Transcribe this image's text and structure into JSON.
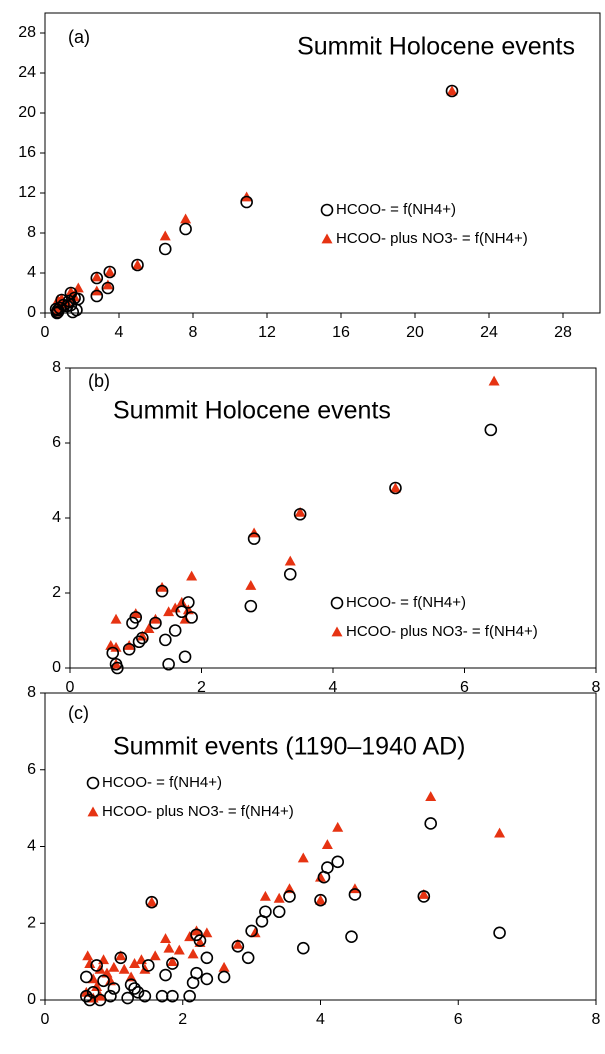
{
  "chart_data": [
    {
      "type": "scatter",
      "label": "(a)",
      "title": "Summit Holocene events",
      "legend": "right",
      "xlim": [
        0,
        30
      ],
      "xticks": [
        0,
        4,
        8,
        12,
        16,
        20,
        24,
        28
      ],
      "ylim": [
        0,
        30
      ],
      "yticks": [
        0,
        4,
        8,
        12,
        16,
        20,
        24,
        28
      ],
      "series": [
        {
          "name": "HCOO- = f(NH4+)",
          "color": "#000000",
          "marker": "circle",
          "x": [
            22,
            10.9,
            7.6,
            6.5,
            5,
            3.5,
            3.4,
            2.8,
            2.8,
            1.8,
            1.6,
            1.4,
            1.4,
            1.2,
            1,
            0.9,
            0.8,
            0.7,
            0.65,
            1.5,
            1.7,
            1.3,
            0.6,
            0.7
          ],
          "values": [
            22.2,
            11.1,
            8.4,
            6.4,
            4.8,
            4.1,
            2.5,
            3.5,
            1.7,
            1.4,
            1.5,
            2.0,
            0.8,
            0.7,
            0.8,
            1.3,
            0.5,
            0.3,
            0.0,
            0.1,
            0.3,
            1.2,
            0.4,
            0.1
          ]
        },
        {
          "name": "HCOO- plus NO3- = f(NH4+)",
          "color": "#e63312",
          "marker": "triangle",
          "x": [
            22,
            10.9,
            7.6,
            6.5,
            5,
            3.5,
            3.4,
            2.8,
            2.8,
            1.8,
            1.6,
            1.4,
            1.4,
            1.2,
            1,
            0.9,
            0.8,
            0.7,
            0.6,
            0.65
          ],
          "values": [
            22.2,
            11.6,
            9.4,
            7.7,
            4.8,
            4.1,
            2.8,
            3.6,
            2.2,
            2.5,
            1.6,
            2.1,
            1.5,
            1.0,
            0.9,
            1.4,
            0.6,
            1.3,
            0.6,
            0.1
          ]
        }
      ]
    },
    {
      "type": "scatter",
      "label": "(b)",
      "title": "Summit Holocene events",
      "legend": "lower-right",
      "xlim": [
        0,
        8
      ],
      "xticks": [
        0,
        2,
        4,
        6,
        8
      ],
      "ylim": [
        0,
        8
      ],
      "yticks": [
        0,
        2,
        4,
        6,
        8
      ],
      "series": [
        {
          "name": "HCOO- = f(NH4+)",
          "color": "#000000",
          "marker": "circle",
          "x": [
            6.4,
            4.95,
            3.5,
            3.35,
            2.8,
            2.75,
            1.85,
            1.8,
            1.7,
            1.75,
            1.6,
            1.5,
            1.45,
            1.4,
            1.3,
            1.1,
            1.05,
            1.0,
            0.95,
            0.9,
            0.65,
            0.7,
            0.72
          ],
          "values": [
            6.35,
            4.8,
            4.1,
            2.5,
            3.45,
            1.65,
            1.35,
            1.75,
            1.5,
            0.3,
            1.0,
            0.1,
            0.75,
            2.05,
            1.2,
            0.8,
            0.7,
            1.35,
            1.2,
            0.5,
            0.4,
            0.1,
            0.0
          ]
        },
        {
          "name": "HCOO- plus NO3- = f(NH4+)",
          "color": "#e63312",
          "marker": "triangle",
          "x": [
            6.45,
            4.95,
            3.5,
            3.35,
            2.8,
            2.75,
            1.85,
            1.8,
            1.7,
            1.75,
            1.6,
            1.5,
            1.4,
            1.3,
            1.2,
            1.1,
            1.0,
            0.9,
            0.7,
            0.7,
            0.62,
            0.7
          ],
          "values": [
            7.65,
            4.8,
            4.15,
            2.85,
            3.6,
            2.2,
            2.45,
            1.55,
            1.75,
            1.3,
            1.6,
            1.5,
            2.15,
            1.3,
            1.05,
            0.85,
            1.45,
            0.6,
            1.3,
            0.55,
            0.6,
            0.1
          ]
        }
      ]
    },
    {
      "type": "scatter",
      "label": "(c)",
      "title": "Summit events (1190–1940 AD)",
      "legend": "upper-left",
      "xlim": [
        0,
        8
      ],
      "xticks": [
        0,
        2,
        4,
        6,
        8
      ],
      "ylim": [
        0,
        8
      ],
      "yticks": [
        0,
        2,
        4,
        6,
        8
      ],
      "series": [
        {
          "name": "HCOO- = f(NH4+)",
          "color": "#000000",
          "marker": "circle",
          "x": [
            6.6,
            5.6,
            5.5,
            4.45,
            4.5,
            4.25,
            4.1,
            4.05,
            4,
            3.75,
            3.55,
            3.4,
            3.2,
            3.15,
            3.0,
            2.95,
            2.8,
            2.6,
            2.35,
            2.35,
            2.2,
            2.2,
            2.15,
            2.1,
            2.25,
            1.85,
            1.85,
            1.7,
            1.75,
            1.55,
            1.5,
            1.45,
            1.35,
            1.25,
            1.2,
            1.1,
            1.0,
            0.95,
            0.85,
            0.8,
            0.7,
            0.65,
            0.6,
            0.6,
            0.75,
            1.3
          ],
          "values": [
            1.75,
            4.6,
            2.7,
            1.65,
            2.75,
            3.6,
            3.45,
            3.2,
            2.6,
            1.35,
            2.7,
            2.3,
            2.3,
            2.05,
            1.8,
            1.1,
            1.4,
            0.6,
            0.55,
            1.1,
            0.7,
            1.7,
            0.45,
            0.1,
            1.55,
            0.95,
            0.1,
            0.1,
            0.65,
            2.55,
            0.9,
            0.1,
            0.2,
            0.4,
            0.05,
            1.1,
            0.3,
            0.1,
            0.5,
            0.0,
            0.2,
            0.0,
            0.6,
            0.1,
            0.9,
            0.3
          ]
        },
        {
          "name": "HCOO- plus NO3- = f(NH4+)",
          "color": "#e63312",
          "marker": "triangle",
          "x": [
            6.6,
            5.6,
            5.5,
            4.5,
            4.25,
            4.1,
            4.0,
            4.0,
            3.75,
            3.55,
            3.4,
            3.2,
            3.05,
            2.8,
            2.6,
            2.35,
            2.25,
            2.2,
            2.15,
            2.1,
            1.95,
            1.85,
            1.8,
            1.75,
            1.6,
            1.55,
            1.45,
            1.4,
            1.3,
            1.25,
            1.15,
            1.1,
            1.0,
            0.95,
            0.9,
            0.85,
            0.8,
            0.75,
            0.7,
            0.65,
            0.62,
            0.6,
            0.7,
            0.8
          ],
          "values": [
            4.35,
            5.3,
            2.75,
            2.9,
            4.5,
            4.05,
            3.2,
            2.6,
            3.7,
            2.9,
            2.65,
            2.7,
            1.75,
            1.45,
            0.85,
            1.75,
            1.5,
            1.8,
            1.2,
            1.65,
            1.3,
            1.0,
            1.35,
            1.6,
            1.15,
            2.55,
            0.8,
            1.05,
            0.95,
            0.6,
            0.8,
            1.15,
            0.85,
            0.5,
            0.7,
            1.05,
            0.8,
            0.35,
            0.55,
            0.95,
            1.15,
            0.2,
            0.05,
            0.1
          ]
        }
      ]
    }
  ]
}
